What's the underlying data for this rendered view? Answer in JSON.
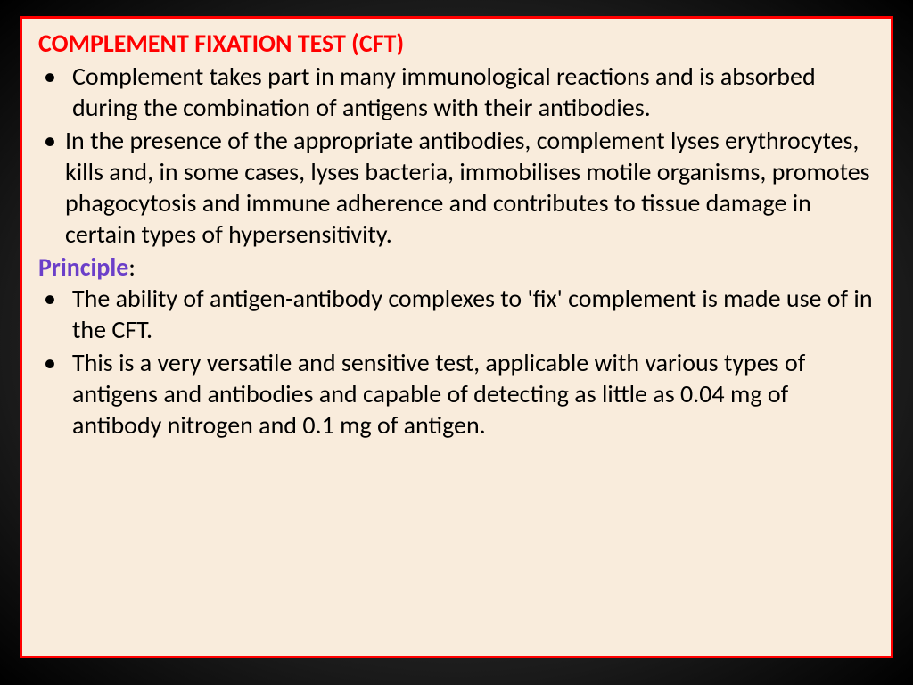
{
  "slide": {
    "title": "COMPLEMENT FIXATION TEST (CFT)",
    "bullets_top": [
      "Complement  takes part in many immunological reactions and is absorbed during the combination of antigens with their antibodies.",
      "In the presence of the appropriate antibodies, complement lyses erythrocytes, kills and, in some cases, lyses bacteria, immobilises motile organisms, promotes phagocytosis and immune adherence and contributes to tissue damage in certain types of hypersensitivity."
    ],
    "principle_label": "Principle",
    "principle_colon": ":",
    "bullets_bottom": [
      "The ability of antigen-antibody complexes to 'fix' complement is made use of in the CFT.",
      "This is a very versatile and sensitive test, applicable with various types of antigens and antibodies and capable of detecting as little as 0.04 mg of antibody nitrogen and 0.1 mg of antigen."
    ],
    "colors": {
      "title": "#ff0000",
      "principle": "#6b3fc9",
      "body": "#000000",
      "background": "#f9ecdc",
      "border": "#ff0000"
    }
  }
}
